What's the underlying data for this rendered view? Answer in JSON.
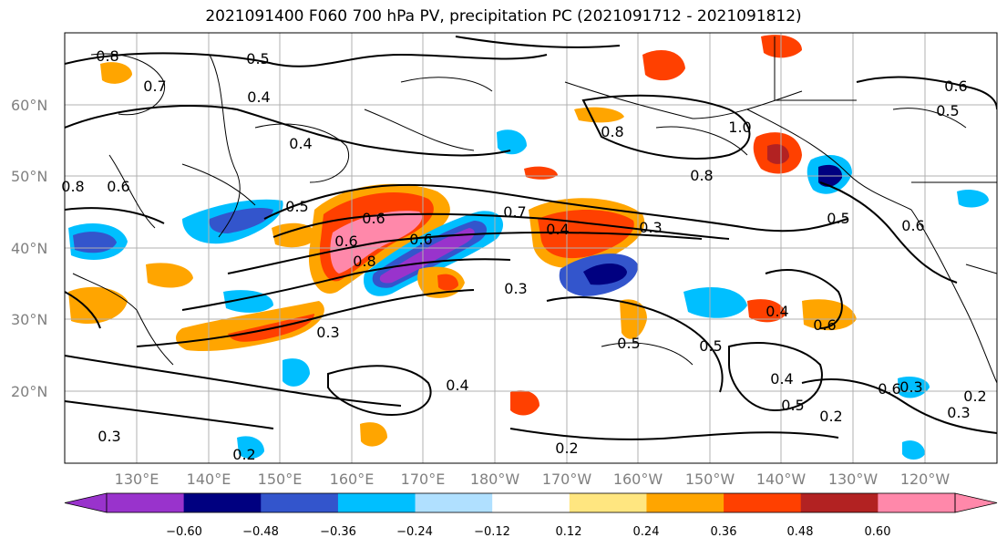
{
  "title": "2021091400 F060 700 hPa PV, precipitation PC (2021091712 - 2021091812)",
  "lat_labels": [
    "60°N",
    "50°N",
    "40°N",
    "30°N",
    "20°N"
  ],
  "lon_labels": [
    "130°E",
    "140°E",
    "150°E",
    "160°E",
    "170°E",
    "180°W",
    "170°W",
    "160°W",
    "150°W",
    "140°W",
    "130°W",
    "120°W"
  ],
  "contour_labels": [
    "0.8",
    "0.5",
    "0.7",
    "0.4",
    "0.4",
    "0.8",
    "0.6",
    "0.5",
    "0.6",
    "0.6",
    "0.8",
    "0.6",
    "0.7",
    "0.4",
    "0.3",
    "0.8",
    "1.0",
    "0.8",
    "0.5",
    "0.3",
    "0.4",
    "0.3",
    "0.5",
    "0.6",
    "0.4",
    "0.2",
    "0.5",
    "0.6",
    "0.3",
    "0.2",
    "0.2",
    "0.3",
    "0.4",
    "0.2",
    "0.3",
    "0.6",
    "0.5",
    "0.6",
    "0.5"
  ],
  "colorbar": {
    "colors": [
      "#9933cc",
      "#000080",
      "#3355cc",
      "#00bfff",
      "#b0e0ff",
      "#ffffff",
      "#ffe680",
      "#ffa500",
      "#ff4000",
      "#b22222",
      "#ff88aa"
    ],
    "ticks": [
      "−0.60",
      "−0.48",
      "−0.36",
      "−0.24",
      "−0.12",
      "0.12",
      "0.24",
      "0.36",
      "0.48",
      "0.60"
    ]
  },
  "colors": {
    "positive_anomaly_strong": "#ff4000",
    "positive_anomaly_max": "#ff88aa",
    "negative_anomaly_strong": "#000080",
    "negative_anomaly_max": "#9933cc",
    "grid": "#b0b0b0",
    "contour": "#000000"
  }
}
